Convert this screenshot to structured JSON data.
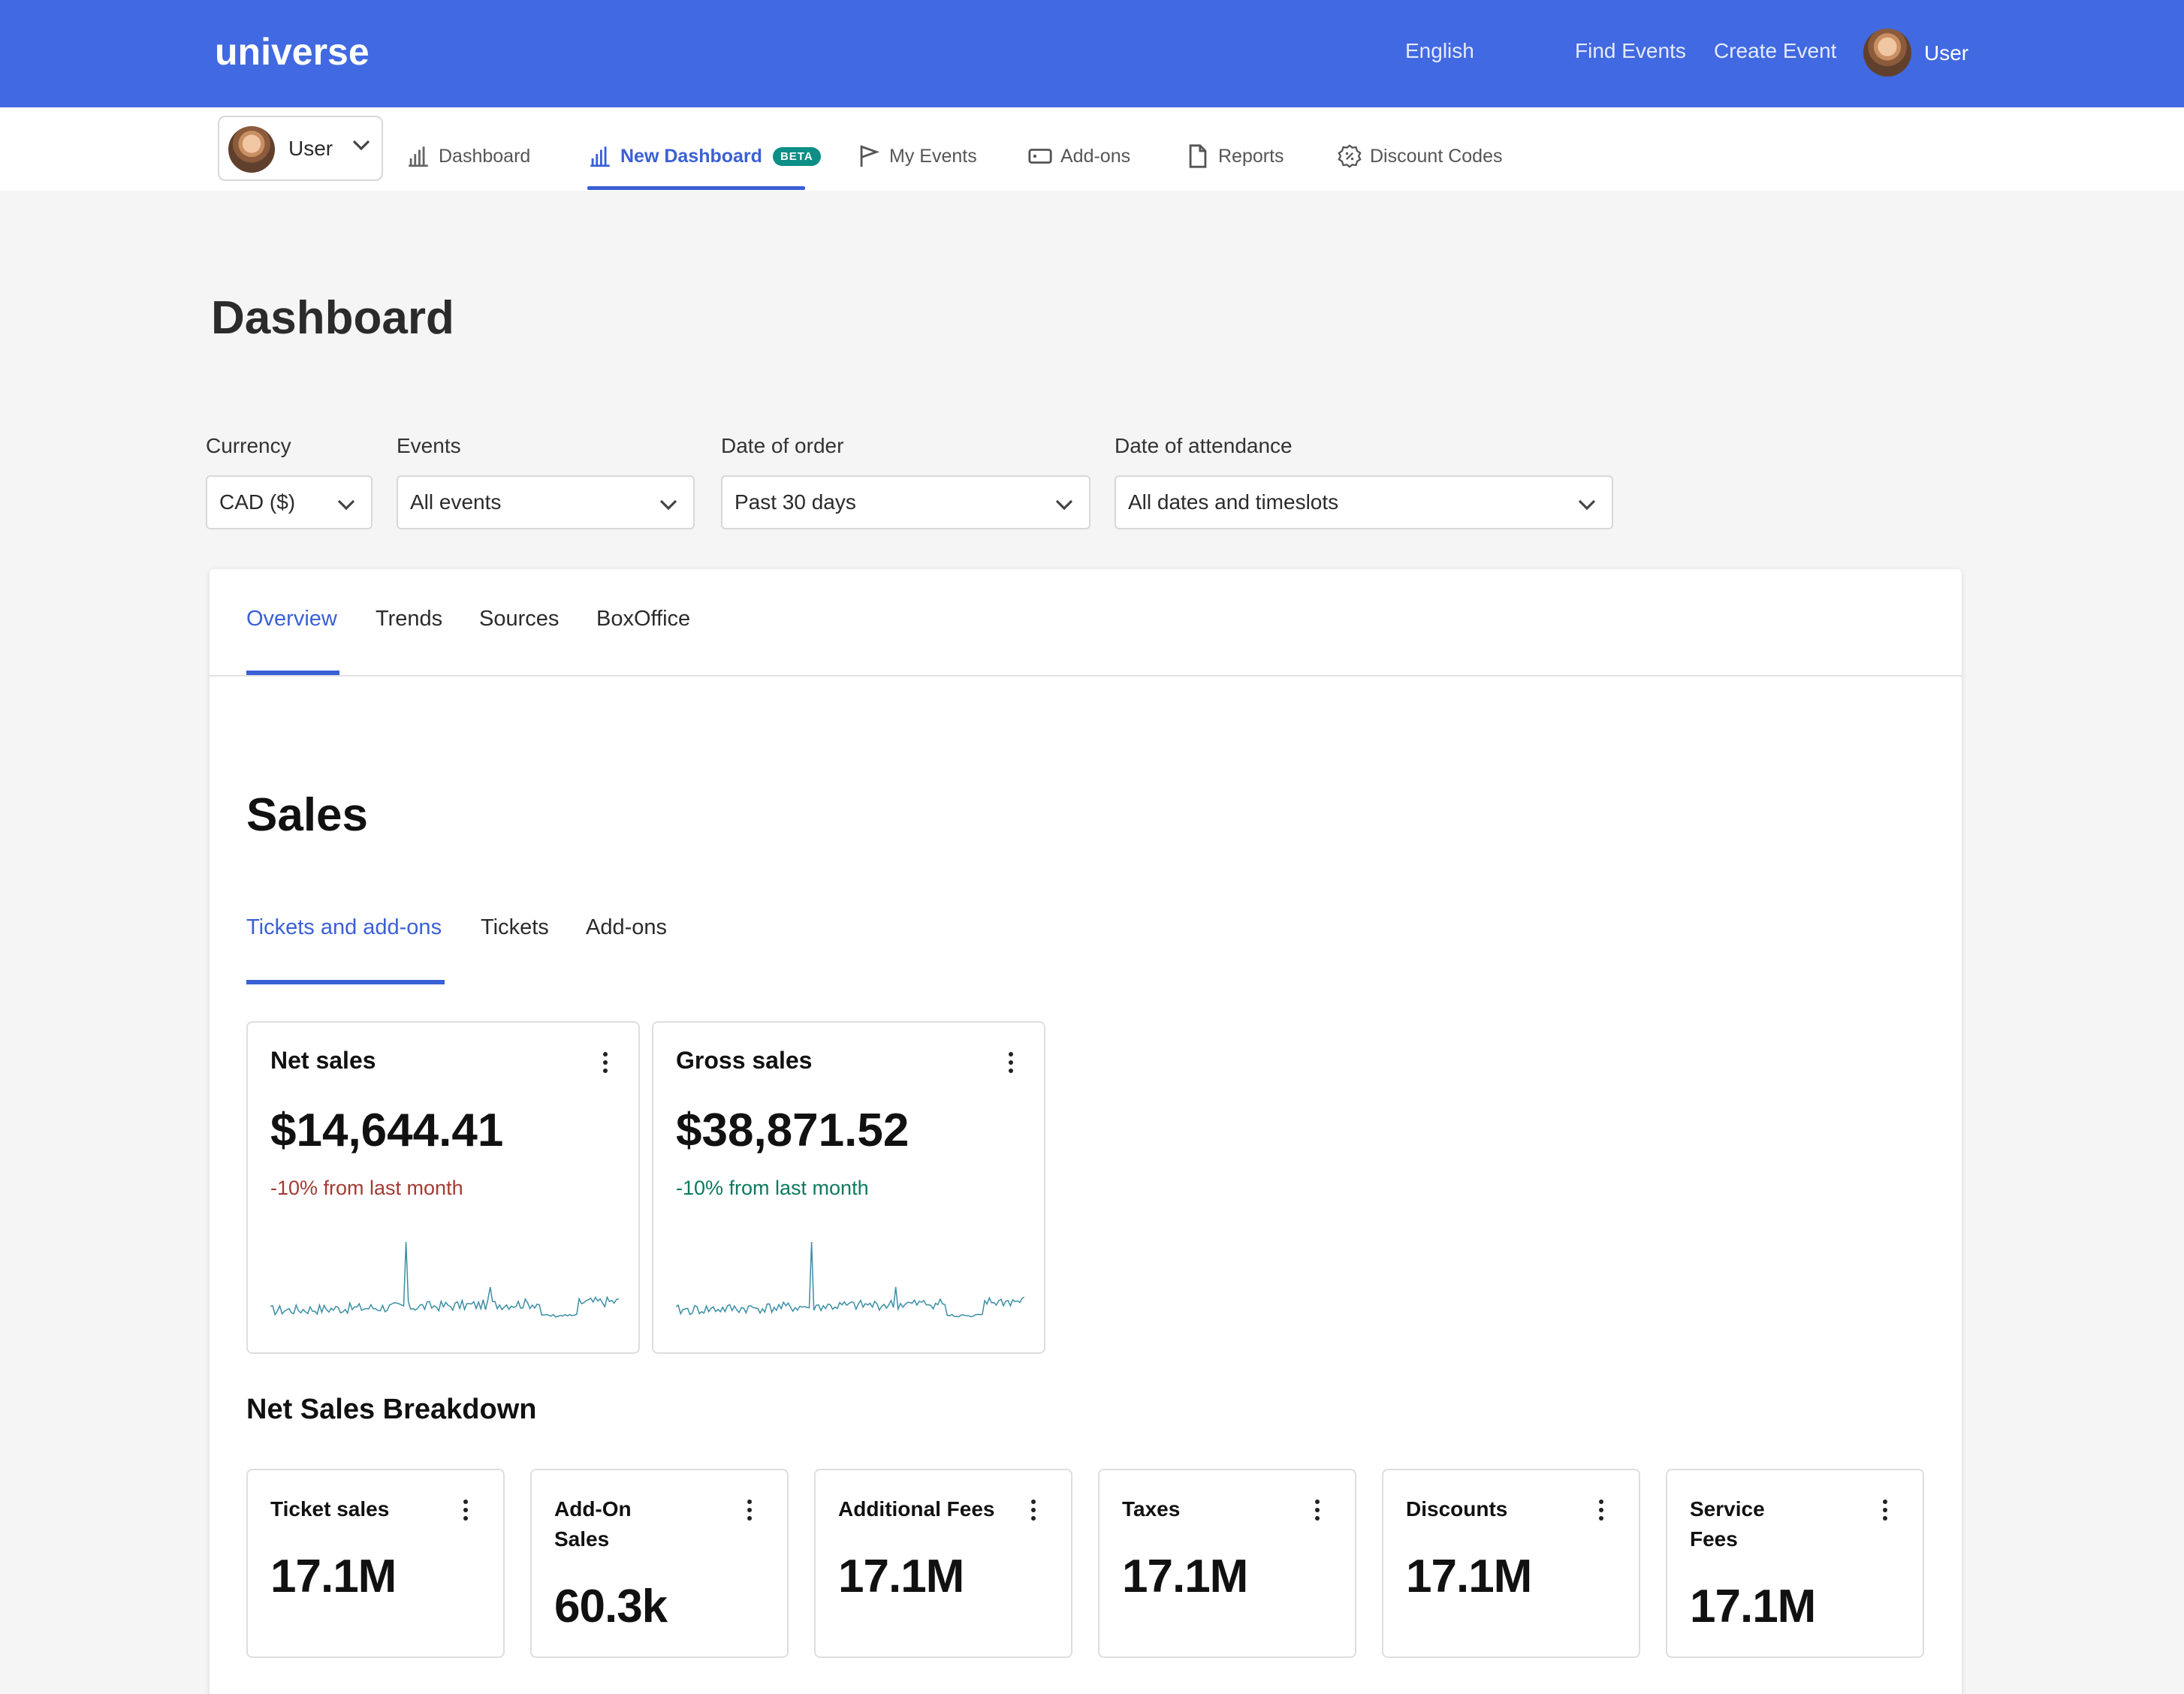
{
  "header": {
    "logo": "universe",
    "language": "English",
    "find_events": "Find Events",
    "create_event": "Create Event",
    "user": "User"
  },
  "subnav": {
    "user_select": "User",
    "items": [
      {
        "label": "Dashboard",
        "icon": "bar-chart-icon"
      },
      {
        "label": "New Dashboard",
        "icon": "bar-chart-icon",
        "badge": "BETA"
      },
      {
        "label": "My Events",
        "icon": "flag-icon"
      },
      {
        "label": "Add-ons",
        "icon": "ticket-icon"
      },
      {
        "label": "Reports",
        "icon": "document-icon"
      },
      {
        "label": "Discount Codes",
        "icon": "discount-icon"
      }
    ]
  },
  "page": {
    "title": "Dashboard"
  },
  "filters": {
    "currency": {
      "label": "Currency",
      "value": "CAD ($)"
    },
    "events": {
      "label": "Events",
      "value": "All events"
    },
    "date_of_order": {
      "label": "Date of order",
      "value": "Past 30 days"
    },
    "date_of_attendance": {
      "label": "Date of attendance",
      "value": "All dates and timeslots"
    }
  },
  "tabs": [
    "Overview",
    "Trends",
    "Sources",
    "BoxOffice"
  ],
  "sales": {
    "title": "Sales",
    "tabs": [
      "Tickets and add-ons",
      "Tickets",
      "Add-ons"
    ],
    "net_sales": {
      "title": "Net sales",
      "value": "$14,644.41",
      "delta": "-10% from last month",
      "delta_color": "#a33b34"
    },
    "gross_sales": {
      "title": "Gross sales",
      "value": "$38,871.52",
      "delta": "-10% from last month",
      "delta_color": "#0d7a5f"
    }
  },
  "breakdown": {
    "title": "Net Sales Breakdown",
    "cards": [
      {
        "title": "Ticket sales",
        "value": "17.1M"
      },
      {
        "title": "Add-On Sales",
        "value": "60.3k"
      },
      {
        "title": "Additional Fees",
        "value": "17.1M"
      },
      {
        "title": "Taxes",
        "value": "17.1M"
      },
      {
        "title": "Discounts",
        "value": "17.1M"
      },
      {
        "title": "Service Fees",
        "value": "17.1M"
      }
    ]
  },
  "colors": {
    "brand": "#4169e1",
    "accent": "#3a60d5",
    "sparkline": "#3b8ea5"
  }
}
